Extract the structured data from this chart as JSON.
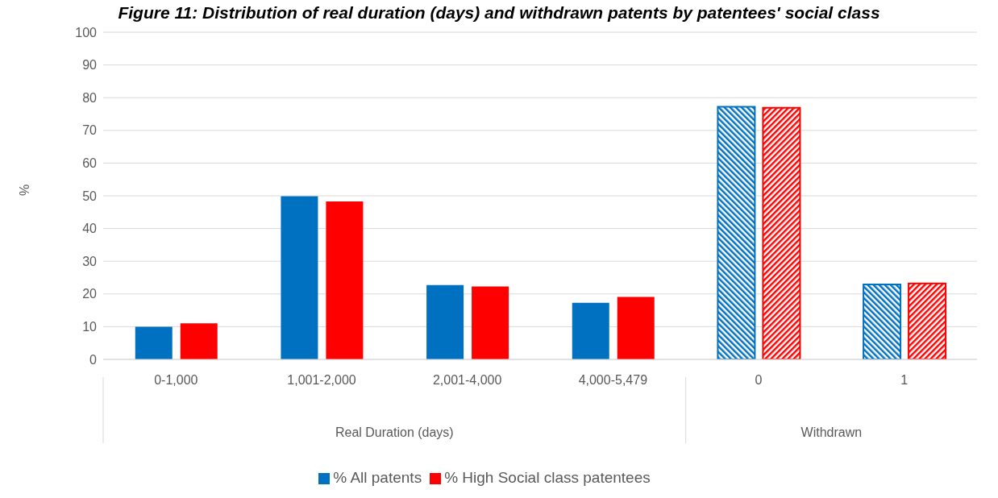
{
  "chart_data": {
    "type": "bar",
    "title": "Figure 11: Distribution of real duration (days) and withdrawn patents by patentees' social class",
    "ylabel": "%",
    "categories": [
      "0-1,000",
      "1,001-2,000",
      "2,001-4,000",
      "4,000-5,479",
      "0",
      "1"
    ],
    "series": [
      {
        "name": "% All patents",
        "color": "#0070c0",
        "values": [
          10.0,
          49.9,
          22.7,
          17.3,
          77.2,
          22.9
        ]
      },
      {
        "name": "% High Social class patentees",
        "color": "#ff0000",
        "values": [
          11.0,
          48.3,
          22.3,
          19.1,
          76.9,
          23.2
        ]
      }
    ],
    "annotations": [
      "Real Duration (days)",
      "Withdrawn"
    ],
    "ylim": [
      0,
      100
    ],
    "yticks": [
      0,
      10,
      20,
      30,
      40,
      50,
      60,
      70,
      80,
      90,
      100
    ],
    "grid": "y",
    "legend": "bottom"
  }
}
